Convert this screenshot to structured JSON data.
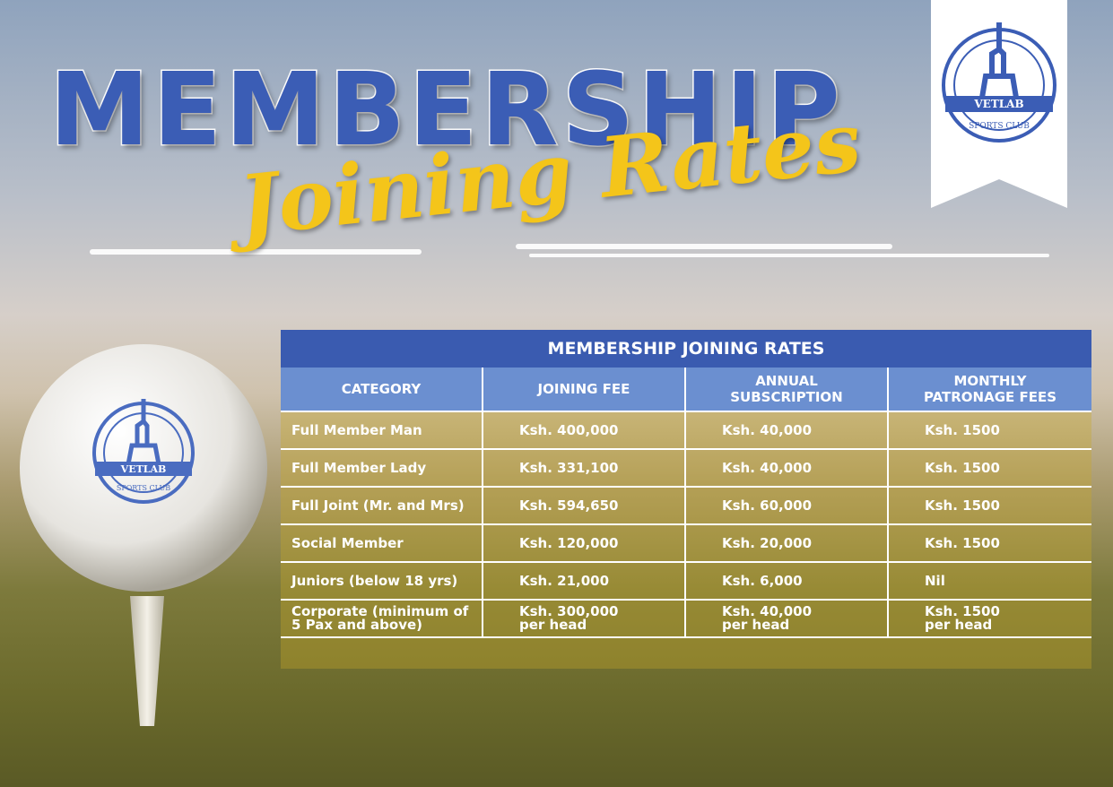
{
  "header": {
    "title": "MEMBERSHIP",
    "subtitle": "Joining Rates"
  },
  "logo": {
    "name": "VETLAB",
    "tagline": "SPORTS CLUB"
  },
  "table": {
    "title": "MEMBERSHIP JOINING RATES",
    "columns": [
      "CATEGORY",
      "JOINING FEE",
      "ANNUAL\nSUBSCRIPTION",
      "MONTHLY\nPATRONAGE FEES"
    ],
    "rows": [
      [
        "Full Member Man",
        "Ksh. 400,000",
        "Ksh. 40,000",
        "Ksh. 1500"
      ],
      [
        "Full Member Lady",
        "Ksh. 331,100",
        "Ksh. 40,000",
        "Ksh. 1500"
      ],
      [
        "Full Joint (Mr. and Mrs)",
        "Ksh. 594,650",
        "Ksh. 60,000",
        "Ksh. 1500"
      ],
      [
        "Social Member",
        "Ksh. 120,000",
        "Ksh. 20,000",
        "Ksh. 1500"
      ],
      [
        "Juniors (below 18 yrs)",
        "Ksh. 21,000",
        "Ksh. 6,000",
        "Nil"
      ],
      [
        "Corporate (minimum of\n5 Pax and above)",
        "Ksh. 300,000\nper head",
        "Ksh. 40,000\nper head",
        "Ksh. 1500\nper head"
      ]
    ]
  }
}
